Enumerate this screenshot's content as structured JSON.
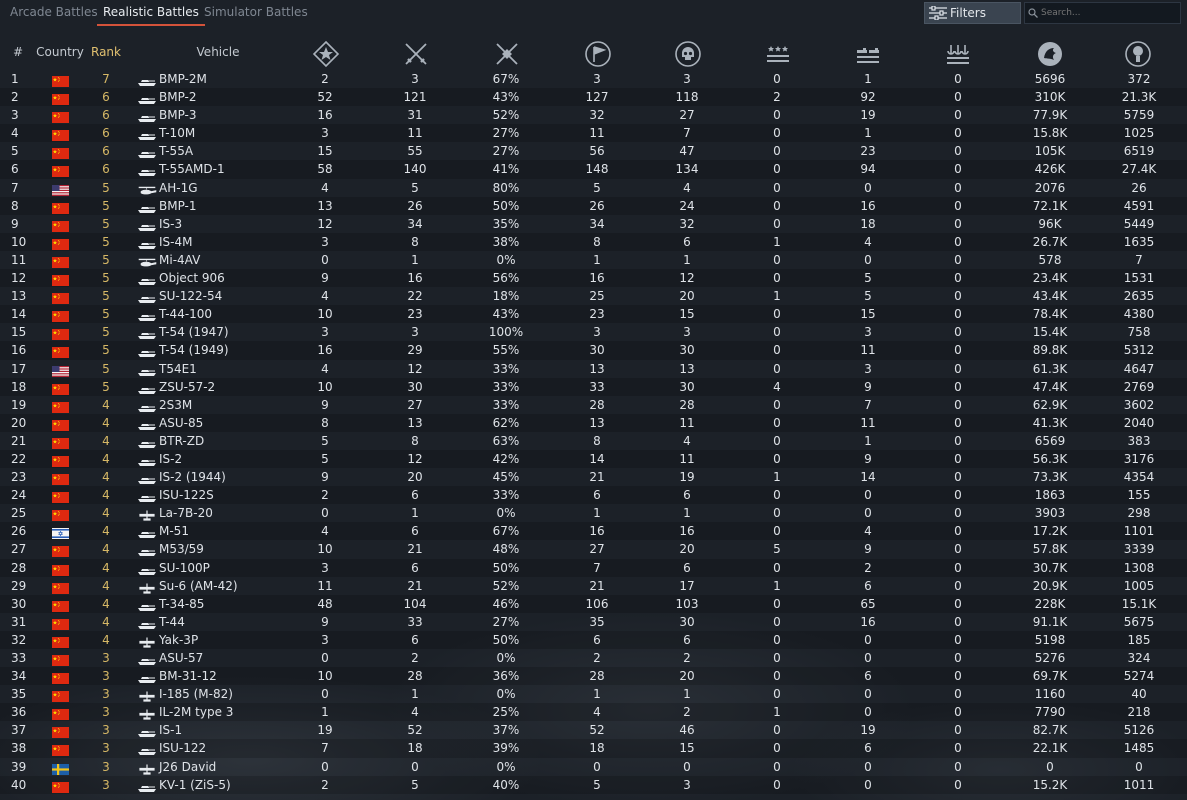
{
  "tabs": [
    {
      "label": "Arcade Battles",
      "active": false
    },
    {
      "label": "Realistic Battles",
      "active": true
    },
    {
      "label": "Simulator Battles",
      "active": false
    }
  ],
  "filters_label": "Filters",
  "search_placeholder": "Search...",
  "columns": {
    "num": "#",
    "country": "Country",
    "rank": "Rank",
    "vehicle": "Vehicle",
    "stat_icons": [
      "battles-icon",
      "victories-icon",
      "win-rate-icon",
      "respawns-icon",
      "deaths-icon",
      "air-kills-icon",
      "ground-kills-icon",
      "naval-kills-icon",
      "research-points-icon",
      "silver-lions-icon"
    ]
  },
  "colors": {
    "accent": "#d4533a",
    "rank": "#d6b866",
    "bg": "#1c2128"
  },
  "rows": [
    {
      "n": "1",
      "country": "china",
      "rank": "7",
      "type": "tank",
      "name": "BMP-2M",
      "s": [
        "2",
        "3",
        "67%",
        "3",
        "3",
        "0",
        "1",
        "0",
        "5696",
        "372"
      ]
    },
    {
      "n": "2",
      "country": "china",
      "rank": "6",
      "type": "tank",
      "name": "BMP-2",
      "s": [
        "52",
        "121",
        "43%",
        "127",
        "118",
        "2",
        "92",
        "0",
        "310K",
        "21.3K"
      ]
    },
    {
      "n": "3",
      "country": "china",
      "rank": "6",
      "type": "tank",
      "name": "BMP-3",
      "s": [
        "16",
        "31",
        "52%",
        "32",
        "27",
        "0",
        "19",
        "0",
        "77.9K",
        "5759"
      ]
    },
    {
      "n": "4",
      "country": "china",
      "rank": "6",
      "type": "tank",
      "name": "T-10M",
      "s": [
        "3",
        "11",
        "27%",
        "11",
        "7",
        "0",
        "1",
        "0",
        "15.8K",
        "1025"
      ]
    },
    {
      "n": "5",
      "country": "china",
      "rank": "6",
      "type": "tank",
      "name": "T-55A",
      "s": [
        "15",
        "55",
        "27%",
        "56",
        "47",
        "0",
        "23",
        "0",
        "105K",
        "6519"
      ]
    },
    {
      "n": "6",
      "country": "china",
      "rank": "6",
      "type": "tank",
      "name": "T-55AMD-1",
      "s": [
        "58",
        "140",
        "41%",
        "148",
        "134",
        "0",
        "94",
        "0",
        "426K",
        "27.4K"
      ]
    },
    {
      "n": "7",
      "country": "usa",
      "rank": "5",
      "type": "heli",
      "name": "AH-1G",
      "s": [
        "4",
        "5",
        "80%",
        "5",
        "4",
        "0",
        "0",
        "0",
        "2076",
        "26"
      ]
    },
    {
      "n": "8",
      "country": "china",
      "rank": "5",
      "type": "tank",
      "name": "BMP-1",
      "s": [
        "13",
        "26",
        "50%",
        "26",
        "24",
        "0",
        "16",
        "0",
        "72.1K",
        "4591"
      ]
    },
    {
      "n": "9",
      "country": "china",
      "rank": "5",
      "type": "tank",
      "name": "IS-3",
      "s": [
        "12",
        "34",
        "35%",
        "34",
        "32",
        "0",
        "18",
        "0",
        "96K",
        "5449"
      ]
    },
    {
      "n": "10",
      "country": "china",
      "rank": "5",
      "type": "tank",
      "name": "IS-4M",
      "s": [
        "3",
        "8",
        "38%",
        "8",
        "6",
        "1",
        "4",
        "0",
        "26.7K",
        "1635"
      ]
    },
    {
      "n": "11",
      "country": "china",
      "rank": "5",
      "type": "heli",
      "name": "Mi-4AV",
      "s": [
        "0",
        "1",
        "0%",
        "1",
        "1",
        "0",
        "0",
        "0",
        "578",
        "7"
      ]
    },
    {
      "n": "12",
      "country": "china",
      "rank": "5",
      "type": "tank",
      "name": "Object 906",
      "s": [
        "9",
        "16",
        "56%",
        "16",
        "12",
        "0",
        "5",
        "0",
        "23.4K",
        "1531"
      ]
    },
    {
      "n": "13",
      "country": "china",
      "rank": "5",
      "type": "tank",
      "name": "SU-122-54",
      "s": [
        "4",
        "22",
        "18%",
        "25",
        "20",
        "1",
        "5",
        "0",
        "43.4K",
        "2635"
      ]
    },
    {
      "n": "14",
      "country": "china",
      "rank": "5",
      "type": "tank",
      "name": "T-44-100",
      "s": [
        "10",
        "23",
        "43%",
        "23",
        "15",
        "0",
        "15",
        "0",
        "78.4K",
        "4380"
      ]
    },
    {
      "n": "15",
      "country": "china",
      "rank": "5",
      "type": "tank",
      "name": "T-54 (1947)",
      "s": [
        "3",
        "3",
        "100%",
        "3",
        "3",
        "0",
        "3",
        "0",
        "15.4K",
        "758"
      ]
    },
    {
      "n": "16",
      "country": "china",
      "rank": "5",
      "type": "tank",
      "name": "T-54 (1949)",
      "s": [
        "16",
        "29",
        "55%",
        "30",
        "30",
        "0",
        "11",
        "0",
        "89.8K",
        "5312"
      ]
    },
    {
      "n": "17",
      "country": "usa",
      "rank": "5",
      "type": "tank",
      "name": "T54E1",
      "s": [
        "4",
        "12",
        "33%",
        "13",
        "13",
        "0",
        "3",
        "0",
        "61.3K",
        "4647"
      ]
    },
    {
      "n": "18",
      "country": "china",
      "rank": "5",
      "type": "tank",
      "name": "ZSU-57-2",
      "s": [
        "10",
        "30",
        "33%",
        "33",
        "30",
        "4",
        "9",
        "0",
        "47.4K",
        "2769"
      ]
    },
    {
      "n": "19",
      "country": "china",
      "rank": "4",
      "type": "tank",
      "name": "2S3M",
      "s": [
        "9",
        "27",
        "33%",
        "28",
        "28",
        "0",
        "7",
        "0",
        "62.9K",
        "3602"
      ]
    },
    {
      "n": "20",
      "country": "china",
      "rank": "4",
      "type": "tank",
      "name": "ASU-85",
      "s": [
        "8",
        "13",
        "62%",
        "13",
        "11",
        "0",
        "11",
        "0",
        "41.3K",
        "2040"
      ]
    },
    {
      "n": "21",
      "country": "china",
      "rank": "4",
      "type": "tank",
      "name": "BTR-ZD",
      "s": [
        "5",
        "8",
        "63%",
        "8",
        "4",
        "0",
        "1",
        "0",
        "6569",
        "383"
      ]
    },
    {
      "n": "22",
      "country": "china",
      "rank": "4",
      "type": "tank",
      "name": "IS-2",
      "s": [
        "5",
        "12",
        "42%",
        "14",
        "11",
        "0",
        "9",
        "0",
        "56.3K",
        "3176"
      ]
    },
    {
      "n": "23",
      "country": "china",
      "rank": "4",
      "type": "tank",
      "name": "IS-2 (1944)",
      "s": [
        "9",
        "20",
        "45%",
        "21",
        "19",
        "1",
        "14",
        "0",
        "73.3K",
        "4354"
      ]
    },
    {
      "n": "24",
      "country": "china",
      "rank": "4",
      "type": "tank",
      "name": "ISU-122S",
      "s": [
        "2",
        "6",
        "33%",
        "6",
        "6",
        "0",
        "0",
        "0",
        "1863",
        "155"
      ]
    },
    {
      "n": "25",
      "country": "china",
      "rank": "4",
      "type": "plane",
      "name": "La-7B-20",
      "s": [
        "0",
        "1",
        "0%",
        "1",
        "1",
        "0",
        "0",
        "0",
        "3903",
        "298"
      ]
    },
    {
      "n": "26",
      "country": "israel",
      "rank": "4",
      "type": "tank",
      "name": "M-51",
      "s": [
        "4",
        "6",
        "67%",
        "16",
        "16",
        "0",
        "4",
        "0",
        "17.2K",
        "1101"
      ]
    },
    {
      "n": "27",
      "country": "china",
      "rank": "4",
      "type": "tank",
      "name": "M53/59",
      "s": [
        "10",
        "21",
        "48%",
        "27",
        "20",
        "5",
        "9",
        "0",
        "57.8K",
        "3339"
      ]
    },
    {
      "n": "28",
      "country": "china",
      "rank": "4",
      "type": "tank",
      "name": "SU-100P",
      "s": [
        "3",
        "6",
        "50%",
        "7",
        "6",
        "0",
        "2",
        "0",
        "30.7K",
        "1308"
      ]
    },
    {
      "n": "29",
      "country": "china",
      "rank": "4",
      "type": "plane",
      "name": "Su-6 (AM-42)",
      "s": [
        "11",
        "21",
        "52%",
        "21",
        "17",
        "1",
        "6",
        "0",
        "20.9K",
        "1005"
      ]
    },
    {
      "n": "30",
      "country": "china",
      "rank": "4",
      "type": "tank",
      "name": "T-34-85",
      "s": [
        "48",
        "104",
        "46%",
        "106",
        "103",
        "0",
        "65",
        "0",
        "228K",
        "15.1K"
      ]
    },
    {
      "n": "31",
      "country": "china",
      "rank": "4",
      "type": "tank",
      "name": "T-44",
      "s": [
        "9",
        "33",
        "27%",
        "35",
        "30",
        "0",
        "16",
        "0",
        "91.1K",
        "5675"
      ]
    },
    {
      "n": "32",
      "country": "china",
      "rank": "4",
      "type": "plane",
      "name": "Yak-3P",
      "s": [
        "3",
        "6",
        "50%",
        "6",
        "6",
        "0",
        "0",
        "0",
        "5198",
        "185"
      ]
    },
    {
      "n": "33",
      "country": "china",
      "rank": "3",
      "type": "tank",
      "name": "ASU-57",
      "s": [
        "0",
        "2",
        "0%",
        "2",
        "2",
        "0",
        "0",
        "0",
        "5276",
        "324"
      ]
    },
    {
      "n": "34",
      "country": "china",
      "rank": "3",
      "type": "tank",
      "name": "BM-31-12",
      "s": [
        "10",
        "28",
        "36%",
        "28",
        "20",
        "0",
        "6",
        "0",
        "69.7K",
        "5274"
      ]
    },
    {
      "n": "35",
      "country": "china",
      "rank": "3",
      "type": "plane",
      "name": "I-185 (M-82)",
      "s": [
        "0",
        "1",
        "0%",
        "1",
        "1",
        "0",
        "0",
        "0",
        "1160",
        "40"
      ]
    },
    {
      "n": "36",
      "country": "china",
      "rank": "3",
      "type": "plane",
      "name": "IL-2M type 3",
      "s": [
        "1",
        "4",
        "25%",
        "4",
        "2",
        "1",
        "0",
        "0",
        "7790",
        "218"
      ]
    },
    {
      "n": "37",
      "country": "china",
      "rank": "3",
      "type": "tank",
      "name": "IS-1",
      "s": [
        "19",
        "52",
        "37%",
        "52",
        "46",
        "0",
        "19",
        "0",
        "82.7K",
        "5126"
      ]
    },
    {
      "n": "38",
      "country": "china",
      "rank": "3",
      "type": "tank",
      "name": "ISU-122",
      "s": [
        "7",
        "18",
        "39%",
        "18",
        "15",
        "0",
        "6",
        "0",
        "22.1K",
        "1485"
      ]
    },
    {
      "n": "39",
      "country": "sweden",
      "rank": "3",
      "type": "plane",
      "name": "J26 David",
      "s": [
        "0",
        "0",
        "0%",
        "0",
        "0",
        "0",
        "0",
        "0",
        "0",
        "0"
      ]
    },
    {
      "n": "40",
      "country": "china",
      "rank": "3",
      "type": "tank",
      "name": "KV-1 (ZiS-5)",
      "s": [
        "2",
        "5",
        "40%",
        "5",
        "3",
        "0",
        "0",
        "0",
        "15.2K",
        "1011"
      ]
    }
  ]
}
